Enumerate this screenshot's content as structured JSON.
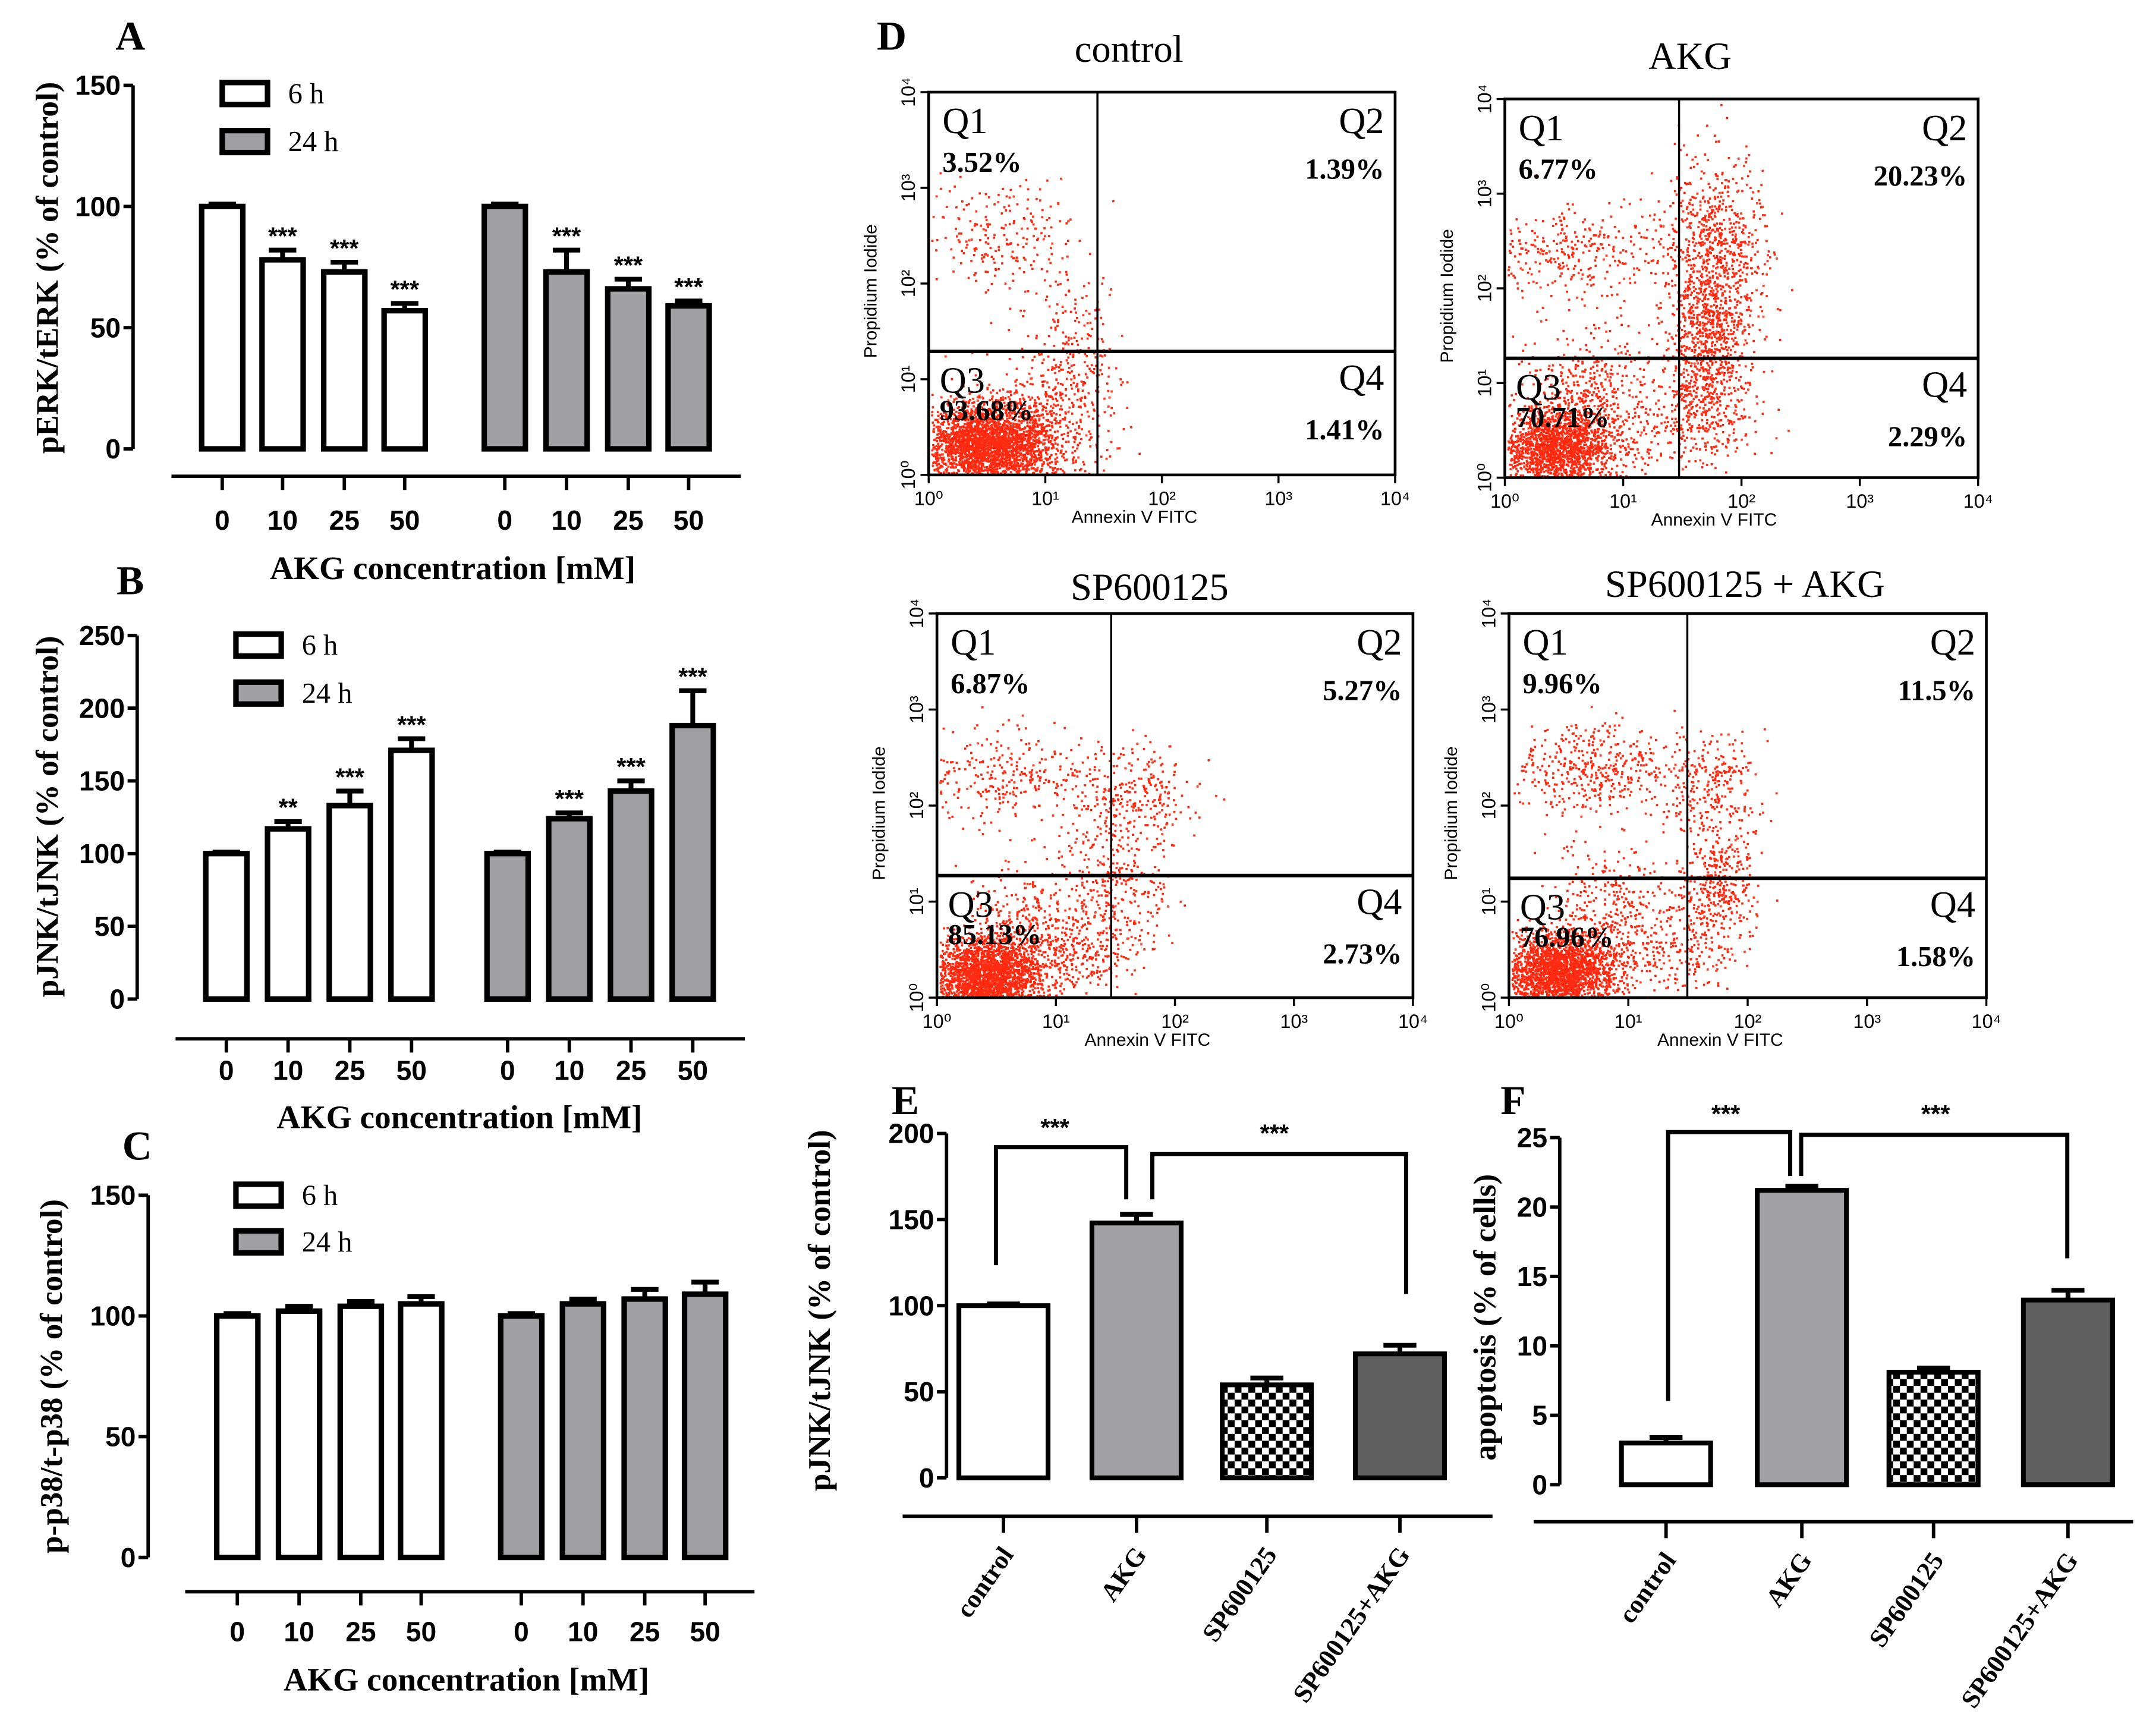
{
  "chart_data": [
    {
      "id": "A",
      "type": "bar",
      "panel_label": "A",
      "ylabel": "pERK/tERK (% of control)",
      "xlabel": "AKG concentration [mM]",
      "ylim": [
        0,
        150
      ],
      "yticks": [
        0,
        50,
        100,
        150
      ],
      "categories": [
        "0",
        "10",
        "25",
        "50"
      ],
      "series": [
        {
          "name": "6 h",
          "fill": "#ffffff",
          "values": [
            100,
            78,
            73,
            57
          ],
          "errors": [
            1,
            4,
            4,
            3
          ],
          "significance": [
            "",
            "***",
            "***",
            "***"
          ]
        },
        {
          "name": "24 h",
          "fill": "#a0a0a3",
          "values": [
            100,
            73,
            66,
            59
          ],
          "errors": [
            1,
            9,
            4,
            2
          ],
          "significance": [
            "",
            "***",
            "***",
            "***"
          ]
        }
      ]
    },
    {
      "id": "B",
      "type": "bar",
      "panel_label": "B",
      "ylabel": "pJNK/tJNK (% of control)",
      "xlabel": "AKG concentration [mM]",
      "ylim": [
        0,
        250
      ],
      "yticks": [
        0,
        50,
        100,
        150,
        200,
        250
      ],
      "categories": [
        "0",
        "10",
        "25",
        "50"
      ],
      "series": [
        {
          "name": "6 h",
          "fill": "#ffffff",
          "values": [
            100,
            117,
            133,
            171
          ],
          "errors": [
            1,
            5,
            10,
            8
          ],
          "significance": [
            "",
            "**",
            "***",
            "***"
          ]
        },
        {
          "name": "24 h",
          "fill": "#a0a0a3",
          "values": [
            100,
            124,
            143,
            188
          ],
          "errors": [
            1,
            4,
            7,
            24
          ],
          "significance": [
            "",
            "***",
            "***",
            "***"
          ]
        }
      ]
    },
    {
      "id": "C",
      "type": "bar",
      "panel_label": "C",
      "ylabel": "p-p38/t-p38 (% of control)",
      "xlabel": "AKG concentration [mM]",
      "ylim": [
        0,
        150
      ],
      "yticks": [
        0,
        50,
        100,
        150
      ],
      "categories": [
        "0",
        "10",
        "25",
        "50"
      ],
      "series": [
        {
          "name": "6 h",
          "fill": "#ffffff",
          "values": [
            100,
            102,
            104,
            105
          ],
          "errors": [
            1,
            2,
            2,
            3
          ],
          "significance": [
            "",
            "",
            "",
            ""
          ]
        },
        {
          "name": "24 h",
          "fill": "#a0a0a3",
          "values": [
            100,
            105,
            107,
            109
          ],
          "errors": [
            1,
            2,
            4,
            5
          ],
          "significance": [
            "",
            "",
            "",
            ""
          ]
        }
      ]
    },
    {
      "id": "D",
      "type": "scatter",
      "panel_label": "D",
      "point_color": "#ff2a10",
      "plots": [
        {
          "title": "control",
          "xlabel": "Annexin V FITC",
          "ylabel": "Propidium Iodide",
          "xticks": [
            "10⁰",
            "10¹",
            "10²",
            "10³",
            "10⁴"
          ],
          "yticks": [
            "10⁰",
            "10¹",
            "10²",
            "10³",
            "10⁴"
          ],
          "quadrants": [
            {
              "name": "Q1",
              "percent": "3.52%"
            },
            {
              "name": "Q2",
              "percent": "1.39%"
            },
            {
              "name": "Q3",
              "percent": "93.68%"
            },
            {
              "name": "Q4",
              "percent": "1.41%"
            }
          ]
        },
        {
          "title": "AKG",
          "xlabel": "Annexin V FITC",
          "ylabel": "Propidium Iodide",
          "xticks": [
            "10⁰",
            "10¹",
            "10²",
            "10³",
            "10⁴"
          ],
          "yticks": [
            "10⁰",
            "10¹",
            "10²",
            "10³",
            "10⁴"
          ],
          "quadrants": [
            {
              "name": "Q1",
              "percent": "6.77%"
            },
            {
              "name": "Q2",
              "percent": "20.23%"
            },
            {
              "name": "Q3",
              "percent": "70.71%"
            },
            {
              "name": "Q4",
              "percent": "2.29%"
            }
          ]
        },
        {
          "title": "SP600125",
          "xlabel": "Annexin V FITC",
          "ylabel": "Propidium Iodide",
          "xticks": [
            "10⁰",
            "10¹",
            "10²",
            "10³",
            "10⁴"
          ],
          "yticks": [
            "10⁰",
            "10¹",
            "10²",
            "10³",
            "10⁴"
          ],
          "quadrants": [
            {
              "name": "Q1",
              "percent": "6.87%"
            },
            {
              "name": "Q2",
              "percent": "5.27%"
            },
            {
              "name": "Q3",
              "percent": "85.13%"
            },
            {
              "name": "Q4",
              "percent": "2.73%"
            }
          ]
        },
        {
          "title": "SP600125 + AKG",
          "xlabel": "Annexin V FITC",
          "ylabel": "Propidium Iodide",
          "xticks": [
            "10⁰",
            "10¹",
            "10²",
            "10³",
            "10⁴"
          ],
          "yticks": [
            "10⁰",
            "10¹",
            "10²",
            "10³",
            "10⁴"
          ],
          "quadrants": [
            {
              "name": "Q1",
              "percent": "9.96%"
            },
            {
              "name": "Q2",
              "percent": "11.5%"
            },
            {
              "name": "Q3",
              "percent": "76.96%"
            },
            {
              "name": "Q4",
              "percent": "1.58%"
            }
          ]
        }
      ]
    },
    {
      "id": "E",
      "type": "bar",
      "panel_label": "E",
      "ylabel": "pJNK/tJNK (% of control)",
      "ylim": [
        0,
        200
      ],
      "yticks": [
        0,
        50,
        100,
        150,
        200
      ],
      "categories": [
        "control",
        "AKG",
        "SP600125",
        "SP600125+AKG"
      ],
      "fills": [
        "white",
        "gray",
        "checker",
        "darkgray"
      ],
      "values": [
        100,
        148,
        54,
        72
      ],
      "errors": [
        1,
        5,
        4,
        5
      ],
      "comparisons": [
        {
          "from": "control",
          "to": "AKG",
          "label": "***"
        },
        {
          "from": "AKG",
          "to": "SP600125+AKG",
          "label": "***"
        }
      ]
    },
    {
      "id": "F",
      "type": "bar",
      "panel_label": "F",
      "ylabel": "apoptosis (% of cells)",
      "ylim": [
        0,
        25
      ],
      "yticks": [
        0,
        5,
        10,
        15,
        20,
        25
      ],
      "categories": [
        "control",
        "AKG",
        "SP600125",
        "SP600125+AKG"
      ],
      "fills": [
        "white",
        "gray",
        "checker",
        "darkgray"
      ],
      "values": [
        3.0,
        21.2,
        8.1,
        13.3
      ],
      "errors": [
        0.4,
        0.3,
        0.3,
        0.7
      ],
      "comparisons": [
        {
          "from": "control",
          "to": "AKG",
          "label": "***"
        },
        {
          "from": "AKG",
          "to": "SP600125+AKG",
          "label": "***"
        }
      ]
    }
  ]
}
